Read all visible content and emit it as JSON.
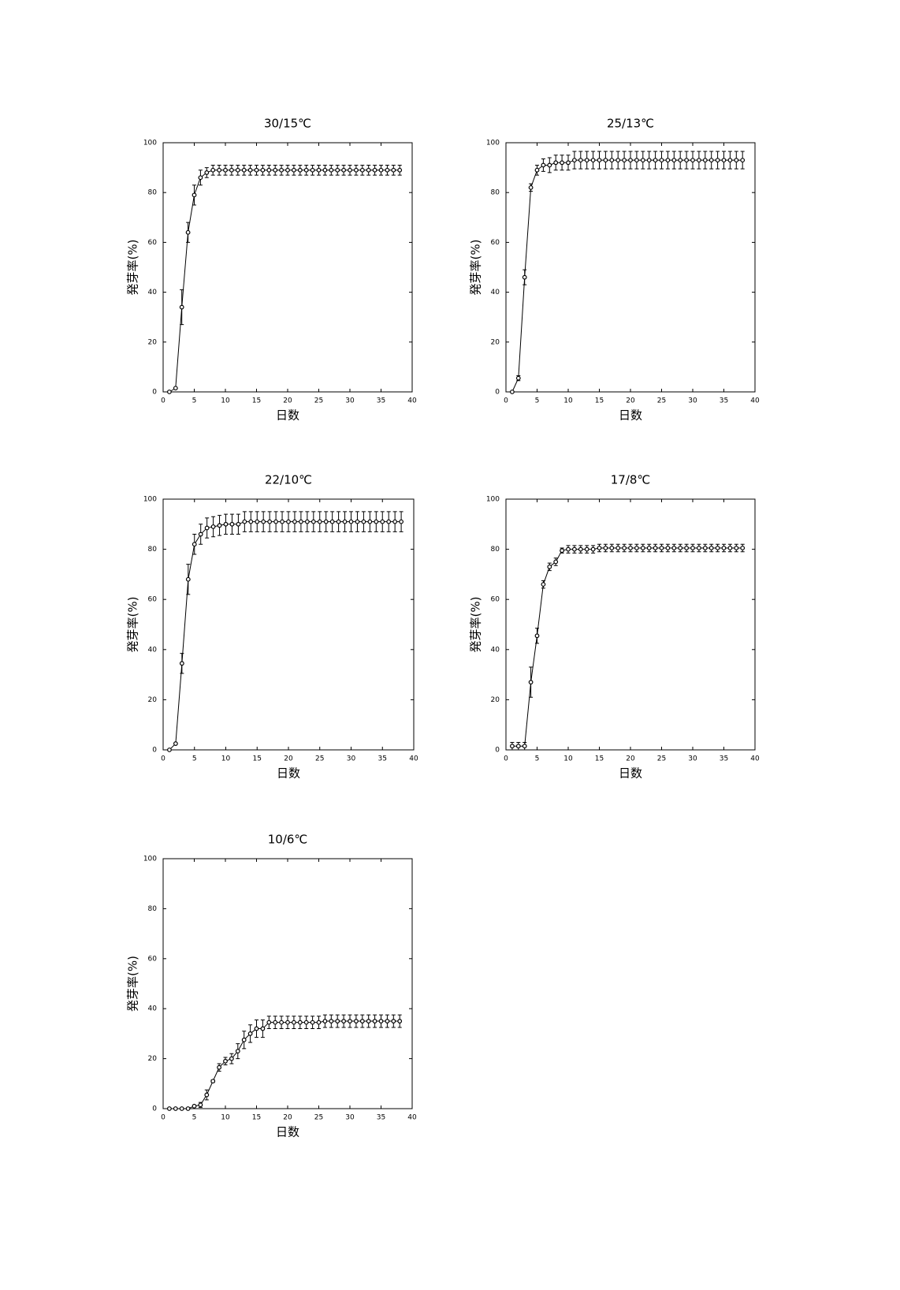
{
  "chart_data": [
    {
      "type": "line",
      "title": "30/15℃",
      "xlabel": "日数",
      "ylabel": "発芽率(%)",
      "x": [
        1,
        2,
        3,
        4,
        5,
        6,
        7,
        8,
        9,
        10,
        11,
        12,
        13,
        14,
        15,
        16,
        17,
        18,
        19,
        20,
        21,
        22,
        23,
        24,
        25,
        26,
        27,
        28,
        29,
        30,
        31,
        32,
        33,
        34,
        35,
        36,
        37,
        38
      ],
      "values": [
        0,
        1.5,
        34,
        64,
        79,
        86,
        88,
        89,
        89,
        89,
        89,
        89,
        89,
        89,
        89,
        89,
        89,
        89,
        89,
        89,
        89,
        89,
        89,
        89,
        89,
        89,
        89,
        89,
        89,
        89,
        89,
        89,
        89,
        89,
        89,
        89,
        89,
        89
      ],
      "errors": [
        0,
        0,
        7,
        4,
        4,
        3,
        2,
        2,
        2,
        2,
        2,
        2,
        2,
        2,
        2,
        2,
        2,
        2,
        2,
        2,
        2,
        2,
        2,
        2,
        2,
        2,
        2,
        2,
        2,
        2,
        2,
        2,
        2,
        2,
        2,
        2,
        2,
        2
      ],
      "color": "#000000",
      "xlim": [
        0,
        40
      ],
      "ylim": [
        0,
        100
      ],
      "xticks": [
        0,
        5,
        10,
        15,
        20,
        25,
        30,
        35,
        40
      ],
      "yticks": [
        0,
        20,
        40,
        60,
        80,
        100
      ]
    },
    {
      "type": "line",
      "title": "25/13℃",
      "xlabel": "日数",
      "ylabel": "発芽率(%)",
      "x": [
        1,
        2,
        3,
        4,
        5,
        6,
        7,
        8,
        9,
        10,
        11,
        12,
        13,
        14,
        15,
        16,
        17,
        18,
        19,
        20,
        21,
        22,
        23,
        24,
        25,
        26,
        27,
        28,
        29,
        30,
        31,
        32,
        33,
        34,
        35,
        36,
        37,
        38
      ],
      "values": [
        0,
        5.5,
        46,
        82,
        89,
        91,
        91,
        92,
        92,
        92,
        93,
        93,
        93,
        93,
        93,
        93,
        93,
        93,
        93,
        93,
        93,
        93,
        93,
        93,
        93,
        93,
        93,
        93,
        93,
        93,
        93,
        93,
        93,
        93,
        93,
        93,
        93,
        93
      ],
      "errors": [
        0,
        1,
        3,
        1.5,
        2,
        2.5,
        3,
        3,
        3,
        3,
        3.5,
        3.5,
        3.5,
        3.5,
        3.5,
        3.5,
        3.5,
        3.5,
        3.5,
        3.5,
        3.5,
        3.5,
        3.5,
        3.5,
        3.5,
        3.5,
        3.5,
        3.5,
        3.5,
        3.5,
        3.5,
        3.5,
        3.5,
        3.5,
        3.5,
        3.5,
        3.5,
        3.5
      ],
      "color": "#000000",
      "xlim": [
        0,
        40
      ],
      "ylim": [
        0,
        100
      ],
      "xticks": [
        0,
        5,
        10,
        15,
        20,
        25,
        30,
        35,
        40
      ],
      "yticks": [
        0,
        20,
        40,
        60,
        80,
        100
      ]
    },
    {
      "type": "line",
      "title": "22/10℃",
      "xlabel": "日数",
      "ylabel": "発芽率(%)",
      "x": [
        1,
        2,
        3,
        4,
        5,
        6,
        7,
        8,
        9,
        10,
        11,
        12,
        13,
        14,
        15,
        16,
        17,
        18,
        19,
        20,
        21,
        22,
        23,
        24,
        25,
        26,
        27,
        28,
        29,
        30,
        31,
        32,
        33,
        34,
        35,
        36,
        37,
        38
      ],
      "values": [
        0,
        2.5,
        34.5,
        68,
        82,
        86,
        88.5,
        89,
        89.5,
        90,
        90,
        90,
        91,
        91,
        91,
        91,
        91,
        91,
        91,
        91,
        91,
        91,
        91,
        91,
        91,
        91,
        91,
        91,
        91,
        91,
        91,
        91,
        91,
        91,
        91,
        91,
        91,
        91
      ],
      "errors": [
        0,
        0,
        4,
        6,
        4,
        4,
        4,
        4,
        4,
        4,
        4,
        4,
        4,
        4,
        4,
        4,
        4,
        4,
        4,
        4,
        4,
        4,
        4,
        4,
        4,
        4,
        4,
        4,
        4,
        4,
        4,
        4,
        4,
        4,
        4,
        4,
        4,
        4
      ],
      "color": "#000000",
      "xlim": [
        0,
        40
      ],
      "ylim": [
        0,
        100
      ],
      "xticks": [
        0,
        5,
        10,
        15,
        20,
        25,
        30,
        35,
        40
      ],
      "yticks": [
        0,
        20,
        40,
        60,
        80,
        100
      ]
    },
    {
      "type": "line",
      "title": "17/8℃",
      "xlabel": "日数",
      "ylabel": "発芽率(%)",
      "x": [
        1,
        2,
        3,
        4,
        5,
        6,
        7,
        8,
        9,
        10,
        11,
        12,
        13,
        14,
        15,
        16,
        17,
        18,
        19,
        20,
        21,
        22,
        23,
        24,
        25,
        26,
        27,
        28,
        29,
        30,
        31,
        32,
        33,
        34,
        35,
        36,
        37,
        38
      ],
      "values": [
        1.5,
        1.5,
        1.5,
        27,
        45.5,
        66,
        73,
        75,
        79.5,
        80,
        80,
        80,
        80,
        80,
        80.5,
        80.5,
        80.5,
        80.5,
        80.5,
        80.5,
        80.5,
        80.5,
        80.5,
        80.5,
        80.5,
        80.5,
        80.5,
        80.5,
        80.5,
        80.5,
        80.5,
        80.5,
        80.5,
        80.5,
        80.5,
        80.5,
        80.5,
        80.5
      ],
      "errors": [
        1.5,
        1.5,
        1.5,
        6,
        3,
        1.5,
        1.5,
        1.5,
        1,
        1.5,
        1.5,
        1.5,
        1.5,
        1.5,
        1.5,
        1.5,
        1.5,
        1.5,
        1.5,
        1.5,
        1.5,
        1.5,
        1.5,
        1.5,
        1.5,
        1.5,
        1.5,
        1.5,
        1.5,
        1.5,
        1.5,
        1.5,
        1.5,
        1.5,
        1.5,
        1.5,
        1.5,
        1.5
      ],
      "color": "#000000",
      "xlim": [
        0,
        40
      ],
      "ylim": [
        0,
        100
      ],
      "xticks": [
        0,
        5,
        10,
        15,
        20,
        25,
        30,
        35,
        40
      ],
      "yticks": [
        0,
        20,
        40,
        60,
        80,
        100
      ]
    },
    {
      "type": "line",
      "title": "10/6℃",
      "xlabel": "日数",
      "ylabel": "発芽率(%)",
      "x": [
        1,
        2,
        3,
        4,
        5,
        6,
        7,
        8,
        9,
        10,
        11,
        12,
        13,
        14,
        15,
        16,
        17,
        18,
        19,
        20,
        21,
        22,
        23,
        24,
        25,
        26,
        27,
        28,
        29,
        30,
        31,
        32,
        33,
        34,
        35,
        36,
        37,
        38
      ],
      "values": [
        0,
        0,
        0,
        0,
        1,
        1.5,
        5.5,
        11,
        16.5,
        19,
        20,
        23,
        27.5,
        30,
        32,
        32,
        34.5,
        34.5,
        34.5,
        34.5,
        34.5,
        34.5,
        34.5,
        34.5,
        34.5,
        35,
        35,
        35,
        35,
        35,
        35,
        35,
        35,
        35,
        35,
        35,
        35,
        35
      ],
      "errors": [
        0,
        0,
        0,
        0,
        0,
        1,
        2,
        0.5,
        1.5,
        1.5,
        2,
        3,
        3.5,
        3.5,
        3.5,
        3.5,
        2.5,
        2.5,
        2.5,
        2.5,
        2.5,
        2.5,
        2.5,
        2.5,
        2.5,
        2.5,
        2.5,
        2.5,
        2.5,
        2.5,
        2.5,
        2.5,
        2.5,
        2.5,
        2.5,
        2.5,
        2.5,
        2.5
      ],
      "color": "#000000",
      "xlim": [
        0,
        40
      ],
      "ylim": [
        0,
        100
      ],
      "xticks": [
        0,
        5,
        10,
        15,
        20,
        25,
        30,
        35,
        40
      ],
      "yticks": [
        0,
        20,
        40,
        60,
        80,
        100
      ]
    }
  ]
}
